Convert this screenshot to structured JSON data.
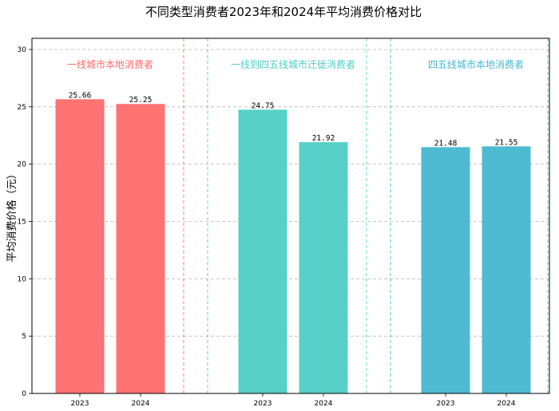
{
  "chart_data": {
    "type": "bar",
    "title": "不同类型消费者2023年和2024年平均消费价格对比",
    "ylabel": "平均消费价格（元）",
    "xlabel": "",
    "ylim": [
      0,
      30
    ],
    "yticks": [
      0,
      5,
      10,
      15,
      20,
      25,
      30
    ],
    "grid": true,
    "groups": [
      {
        "name": "一线城市本地消费者",
        "color": "#ff6b6b",
        "categories": [
          "2023",
          "2024"
        ],
        "values": [
          25.66,
          25.25
        ],
        "labels": [
          "25.66",
          "25.25"
        ]
      },
      {
        "name": "一线到四五线城市迁徙消费者",
        "color": "#4ecdc4",
        "categories": [
          "2023",
          "2024"
        ],
        "values": [
          24.75,
          21.92
        ],
        "labels": [
          "24.75",
          "21.92"
        ]
      },
      {
        "name": "四五线城市本地消费者",
        "color": "#45b7d1",
        "categories": [
          "2023",
          "2024"
        ],
        "values": [
          21.48,
          21.55
        ],
        "labels": [
          "21.48",
          "21.55"
        ]
      }
    ]
  }
}
